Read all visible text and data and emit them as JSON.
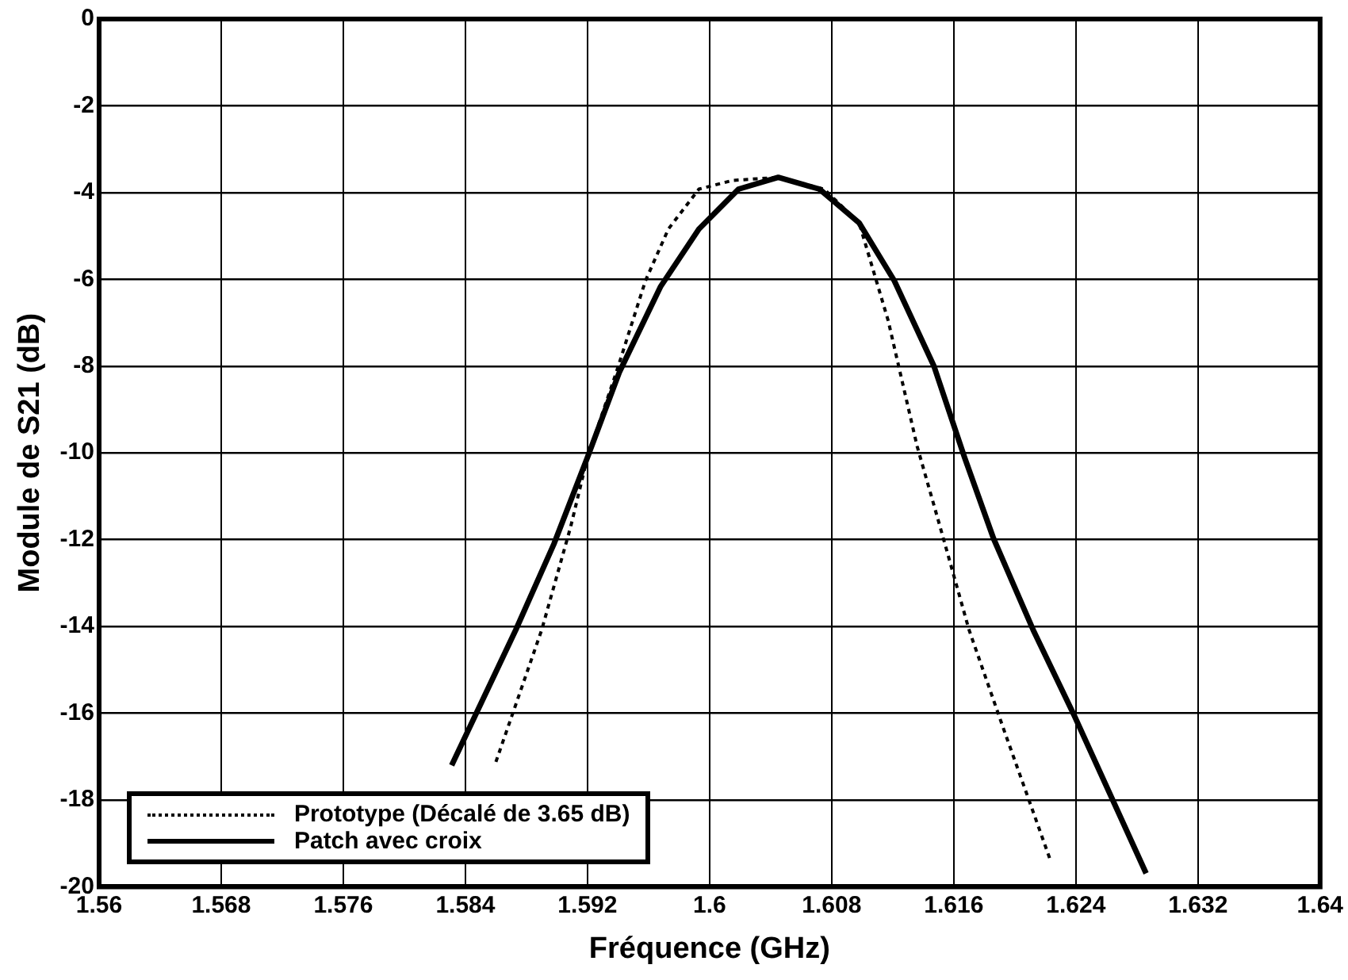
{
  "chart_data": {
    "type": "line",
    "xlabel": "Fréquence (GHz)",
    "ylabel": "Module de S21 (dB)",
    "xlim": [
      1.56,
      1.64
    ],
    "xticks": [
      1.56,
      1.568,
      1.576,
      1.584,
      1.592,
      1.6,
      1.608,
      1.616,
      1.624,
      1.632,
      1.64
    ],
    "ylim": [
      -20,
      0
    ],
    "yticks": [
      -20,
      -18,
      -16,
      -14,
      -12,
      -10,
      -8,
      -6,
      -4,
      -2,
      0
    ],
    "grid": true,
    "legend": "bottom left",
    "marker": "none",
    "series": [
      {
        "name": "Prototype (Décalé de 3.65 dB)",
        "color": "#000000",
        "line_style": "dotted",
        "x": [
          1.586,
          1.589,
          1.5909,
          1.592,
          1.5939,
          1.5958,
          1.5973,
          1.5993,
          1.6015,
          1.6045,
          1.6075,
          1.6098,
          1.6117,
          1.6136,
          1.6151,
          1.617,
          1.6193,
          1.6223
        ],
        "values": [
          -17.12,
          -14.08,
          -11.7,
          -10.1,
          -8.13,
          -6.03,
          -4.84,
          -3.92,
          -3.72,
          -3.65,
          -3.92,
          -4.7,
          -6.95,
          -9.85,
          -11.7,
          -14.08,
          -16.4,
          -19.36
        ]
      },
      {
        "name": "Patch avec croix",
        "color": "#000000",
        "line_style": "solid",
        "x": [
          1.5831,
          1.5873,
          1.5898,
          1.592,
          1.5941,
          1.5968,
          1.5993,
          1.6019,
          1.6045,
          1.6072,
          1.6098,
          1.6121,
          1.6147,
          1.6167,
          1.6186,
          1.6212,
          1.6239,
          1.6286
        ],
        "values": [
          -17.2,
          -14.08,
          -12.1,
          -10.1,
          -8.13,
          -6.16,
          -4.84,
          -3.92,
          -3.65,
          -3.92,
          -4.7,
          -6.03,
          -8.0,
          -10.1,
          -11.97,
          -14.08,
          -16.06,
          -19.69
        ]
      }
    ]
  }
}
